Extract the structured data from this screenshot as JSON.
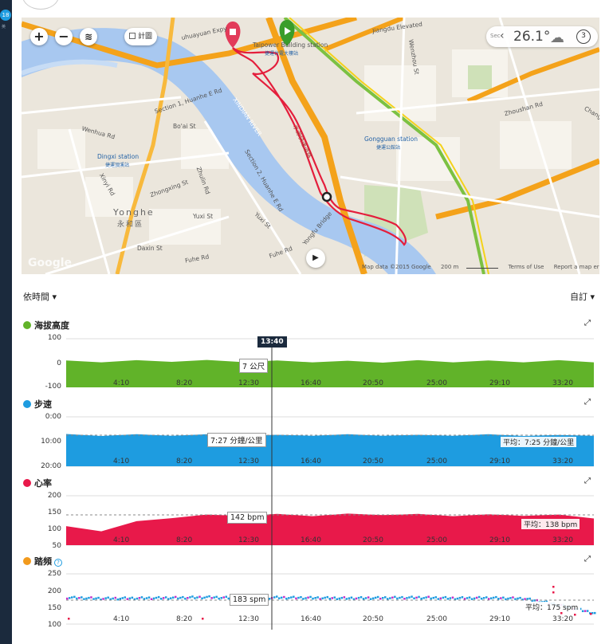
{
  "sidebar": {
    "badge": "18",
    "small_text": "英"
  },
  "map": {
    "zoom_in": "+",
    "zoom_out": "−",
    "layers_icon": "layers-icon",
    "terrain_label": "計圖",
    "weather": {
      "prefix": "Sec",
      "temperature": "26.1°",
      "condition_icon": "cloud-icon",
      "wind": "3"
    },
    "labels": {
      "expy": "uhuayuan Expy",
      "taipower": "Taipower Building station",
      "taipower_zh": "捷運台電大樓站",
      "section1": "Section 1, Huanhe E Rd",
      "wenhua": "Wenhua Rd",
      "boai": "Bo'ai St",
      "dingxi": "Dingxi station",
      "dingxi_zh": "捷運頂溪站",
      "yonghe": "Yonghe",
      "yonghe_zh": "永和區",
      "zhongxing": "Zhongxing St",
      "xinyi": "Xinyi Rd",
      "zhulin": "Zhulin Rd",
      "yuxi": "Yuxi St",
      "fuhe": "Fuhe Rd",
      "daxin": "Daxin St",
      "gongguan": "Gongguan station",
      "gongguan_zh": "捷運公館站",
      "zhoushan": "Zhoushan Rd",
      "section2": "Section 2, Huanhe E Rd",
      "wenzhou": "Wenzhou St",
      "yongfu": "Yongfu Bridge",
      "xindian": "XINDIAN RIVER",
      "jiangwu": "Jiangdu Elevated",
      "riverpath": "水源快速道路",
      "fuhe_bridge": "Fuhe Rd",
      "changxing": "Chang"
    },
    "footer": {
      "data": "Map data ©2015 Google",
      "scale": "200 m",
      "terms": "Terms of Use",
      "report": "Report a map error"
    },
    "google_mark": "Google"
  },
  "controls": {
    "time_dropdown": "依時間 ▾",
    "custom_dropdown": "自訂 ▾"
  },
  "colors": {
    "elevation": "#61b329",
    "pace": "#1e9ce0",
    "heart": "#e8194a",
    "cadence": "#f29a1d"
  },
  "x_ticks": [
    "4:10",
    "8:20",
    "12:30",
    "16:40",
    "20:50",
    "25:00",
    "29:10",
    "33:20"
  ],
  "cursor_time": "13:40",
  "charts": {
    "elevation": {
      "title": "海拔高度",
      "yticks": [
        "100",
        "0",
        "-100"
      ],
      "tooltip": "7 公尺"
    },
    "pace": {
      "title": "步速",
      "yticks": [
        "0:00",
        "10:00",
        "20:00"
      ],
      "tooltip": "7:27 分鐘/公里",
      "average": "平均：7:25 分鐘/公里"
    },
    "heart": {
      "title": "心率",
      "yticks": [
        "200",
        "150",
        "100",
        "50"
      ],
      "tooltip": "142 bpm",
      "average": "平均：138 bpm"
    },
    "cadence": {
      "title": "踏頻",
      "help_icon": "help-icon",
      "yticks": [
        "250",
        "200",
        "150",
        "100"
      ],
      "tooltip": "183 spm",
      "average": "平均：175 spm"
    }
  },
  "chart_data": [
    {
      "type": "area",
      "title": "海拔高度",
      "ylim": [
        -100,
        100
      ],
      "x": "time (min)",
      "values_approx": [
        5,
        5,
        6,
        7,
        7,
        6,
        5,
        5,
        4,
        4,
        6,
        5,
        5,
        5,
        6,
        5
      ]
    },
    {
      "type": "area",
      "title": "步速",
      "ylim": [
        "20:00",
        "0:00"
      ],
      "average": "7:25 分鐘/公里",
      "values_approx_min_per_km": [
        7.2,
        7.5,
        7.3,
        7.4,
        7.3,
        7.4,
        7.5,
        7.4,
        7.3,
        7.4,
        7.5,
        7.4,
        7.3,
        7.5,
        7.6,
        7.4
      ]
    },
    {
      "type": "area",
      "title": "心率",
      "ylim": [
        50,
        200
      ],
      "average": "138 bpm",
      "values_approx": [
        105,
        95,
        120,
        135,
        140,
        142,
        142,
        141,
        143,
        144,
        142,
        141,
        141,
        142,
        140,
        134
      ]
    },
    {
      "type": "scatter",
      "title": "踏頻",
      "ylim": [
        100,
        250
      ],
      "average": "175 spm",
      "values_approx": [
        182,
        179,
        180,
        181,
        183,
        180,
        182,
        181,
        180,
        181,
        182,
        180,
        181,
        179,
        160,
        135
      ]
    }
  ]
}
